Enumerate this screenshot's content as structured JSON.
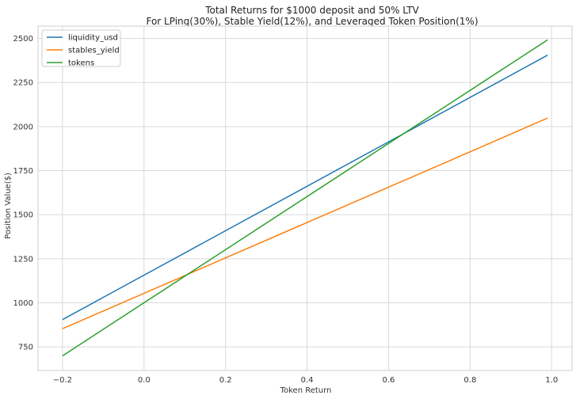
{
  "chart_data": {
    "type": "line",
    "title": "Total Returns for $1000 deposit and 50% LTV",
    "subtitle": "For LPing(30%), Stable Yield(12%), and Leveraged Token Position(1%)",
    "xlabel": "Token Return",
    "ylabel": "Position Value($)",
    "xlim": [
      -0.26,
      1.05
    ],
    "ylim": [
      616,
      2570
    ],
    "xticks": [
      -0.2,
      0.0,
      0.2,
      0.4,
      0.6,
      0.8,
      1.0
    ],
    "xtick_labels": [
      "−0.2",
      "0.0",
      "0.2",
      "0.4",
      "0.6",
      "0.8",
      "1.0"
    ],
    "yticks": [
      750,
      1000,
      1250,
      1500,
      1750,
      2000,
      2250,
      2500
    ],
    "ytick_labels": [
      "750",
      "1000",
      "1250",
      "1500",
      "1750",
      "2000",
      "2250",
      "2500"
    ],
    "grid": true,
    "legend_position": "top-left",
    "series": [
      {
        "name": "liquidity_usd",
        "color": "#1f77b4",
        "x": [
          -0.2,
          0.99
        ],
        "y": [
          905,
          2405
        ]
      },
      {
        "name": "stables_yield",
        "color": "#ff7f0e",
        "x": [
          -0.2,
          0.99
        ],
        "y": [
          853,
          2048
        ]
      },
      {
        "name": "tokens",
        "color": "#2ca02c",
        "x": [
          -0.2,
          0.99
        ],
        "y": [
          699,
          2492
        ]
      }
    ]
  }
}
